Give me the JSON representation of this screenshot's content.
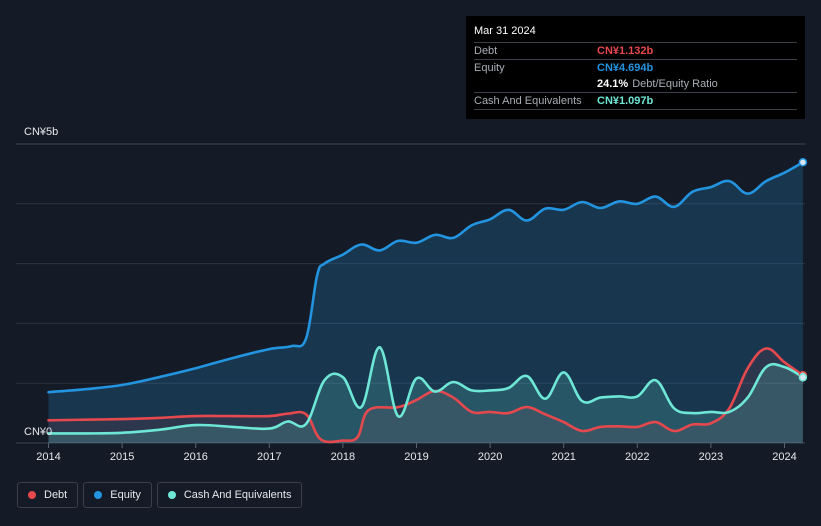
{
  "tooltip": {
    "date": "Mar 31 2024",
    "debt_label": "Debt",
    "debt_value": "CN¥1.132b",
    "equity_label": "Equity",
    "equity_value": "CN¥4.694b",
    "ratio_pct": "24.1%",
    "ratio_label": "Debt/Equity Ratio",
    "cash_label": "Cash And Equivalents",
    "cash_value": "CN¥1.097b"
  },
  "legend": {
    "debt": "Debt",
    "equity": "Equity",
    "cash": "Cash And Equivalents"
  },
  "colors": {
    "debt": "#e5484d",
    "equity": "#2394df",
    "cash": "#6ee7d6",
    "background": "#151b26"
  },
  "chart_data": {
    "type": "area",
    "title": "",
    "ylabel_top": "CN¥5b",
    "ylabel_bottom": "CN¥0",
    "ylim": [
      0,
      5
    ],
    "xlim": [
      2014,
      2024.25
    ],
    "x_ticks": [
      "2014",
      "2015",
      "2016",
      "2017",
      "2018",
      "2019",
      "2020",
      "2021",
      "2022",
      "2023",
      "2024"
    ],
    "series": [
      {
        "name": "Equity",
        "points": [
          [
            2014.0,
            0.85
          ],
          [
            2014.5,
            0.9
          ],
          [
            2015.0,
            0.97
          ],
          [
            2015.5,
            1.1
          ],
          [
            2016.0,
            1.25
          ],
          [
            2016.5,
            1.42
          ],
          [
            2017.0,
            1.57
          ],
          [
            2017.3,
            1.62
          ],
          [
            2017.5,
            1.75
          ],
          [
            2017.65,
            2.8
          ],
          [
            2017.75,
            3.0
          ],
          [
            2018.0,
            3.15
          ],
          [
            2018.25,
            3.32
          ],
          [
            2018.5,
            3.22
          ],
          [
            2018.75,
            3.38
          ],
          [
            2019.0,
            3.35
          ],
          [
            2019.25,
            3.48
          ],
          [
            2019.5,
            3.43
          ],
          [
            2019.75,
            3.64
          ],
          [
            2020.0,
            3.74
          ],
          [
            2020.25,
            3.9
          ],
          [
            2020.5,
            3.72
          ],
          [
            2020.75,
            3.92
          ],
          [
            2021.0,
            3.9
          ],
          [
            2021.25,
            4.03
          ],
          [
            2021.5,
            3.93
          ],
          [
            2021.75,
            4.04
          ],
          [
            2022.0,
            4.0
          ],
          [
            2022.25,
            4.12
          ],
          [
            2022.5,
            3.95
          ],
          [
            2022.75,
            4.2
          ],
          [
            2023.0,
            4.28
          ],
          [
            2023.25,
            4.38
          ],
          [
            2023.5,
            4.17
          ],
          [
            2023.75,
            4.38
          ],
          [
            2024.0,
            4.52
          ],
          [
            2024.25,
            4.694
          ]
        ]
      },
      {
        "name": "Debt",
        "points": [
          [
            2014.0,
            0.38
          ],
          [
            2014.5,
            0.39
          ],
          [
            2015.0,
            0.4
          ],
          [
            2015.5,
            0.42
          ],
          [
            2016.0,
            0.45
          ],
          [
            2016.5,
            0.45
          ],
          [
            2017.0,
            0.45
          ],
          [
            2017.25,
            0.49
          ],
          [
            2017.5,
            0.48
          ],
          [
            2017.7,
            0.06
          ],
          [
            2018.0,
            0.04
          ],
          [
            2018.2,
            0.1
          ],
          [
            2018.35,
            0.55
          ],
          [
            2018.75,
            0.6
          ],
          [
            2019.0,
            0.72
          ],
          [
            2019.25,
            0.87
          ],
          [
            2019.5,
            0.76
          ],
          [
            2019.75,
            0.52
          ],
          [
            2020.0,
            0.52
          ],
          [
            2020.25,
            0.5
          ],
          [
            2020.5,
            0.6
          ],
          [
            2020.75,
            0.48
          ],
          [
            2021.0,
            0.35
          ],
          [
            2021.25,
            0.2
          ],
          [
            2021.5,
            0.27
          ],
          [
            2021.75,
            0.28
          ],
          [
            2022.0,
            0.27
          ],
          [
            2022.25,
            0.35
          ],
          [
            2022.5,
            0.2
          ],
          [
            2022.75,
            0.31
          ],
          [
            2023.0,
            0.33
          ],
          [
            2023.25,
            0.58
          ],
          [
            2023.5,
            1.25
          ],
          [
            2023.75,
            1.58
          ],
          [
            2024.0,
            1.35
          ],
          [
            2024.25,
            1.132
          ]
        ]
      },
      {
        "name": "Cash And Equivalents",
        "points": [
          [
            2014.0,
            0.16
          ],
          [
            2014.5,
            0.16
          ],
          [
            2015.0,
            0.17
          ],
          [
            2015.5,
            0.22
          ],
          [
            2016.0,
            0.3
          ],
          [
            2016.5,
            0.27
          ],
          [
            2017.0,
            0.24
          ],
          [
            2017.25,
            0.36
          ],
          [
            2017.5,
            0.32
          ],
          [
            2017.75,
            1.05
          ],
          [
            2018.0,
            1.1
          ],
          [
            2018.25,
            0.6
          ],
          [
            2018.5,
            1.6
          ],
          [
            2018.75,
            0.45
          ],
          [
            2019.0,
            1.08
          ],
          [
            2019.25,
            0.86
          ],
          [
            2019.5,
            1.02
          ],
          [
            2019.75,
            0.88
          ],
          [
            2020.0,
            0.88
          ],
          [
            2020.25,
            0.92
          ],
          [
            2020.5,
            1.12
          ],
          [
            2020.75,
            0.74
          ],
          [
            2021.0,
            1.18
          ],
          [
            2021.25,
            0.7
          ],
          [
            2021.5,
            0.76
          ],
          [
            2021.75,
            0.78
          ],
          [
            2022.0,
            0.78
          ],
          [
            2022.25,
            1.05
          ],
          [
            2022.5,
            0.58
          ],
          [
            2022.75,
            0.5
          ],
          [
            2023.0,
            0.52
          ],
          [
            2023.25,
            0.52
          ],
          [
            2023.5,
            0.76
          ],
          [
            2023.75,
            1.27
          ],
          [
            2024.0,
            1.27
          ],
          [
            2024.25,
            1.097
          ]
        ]
      }
    ]
  }
}
